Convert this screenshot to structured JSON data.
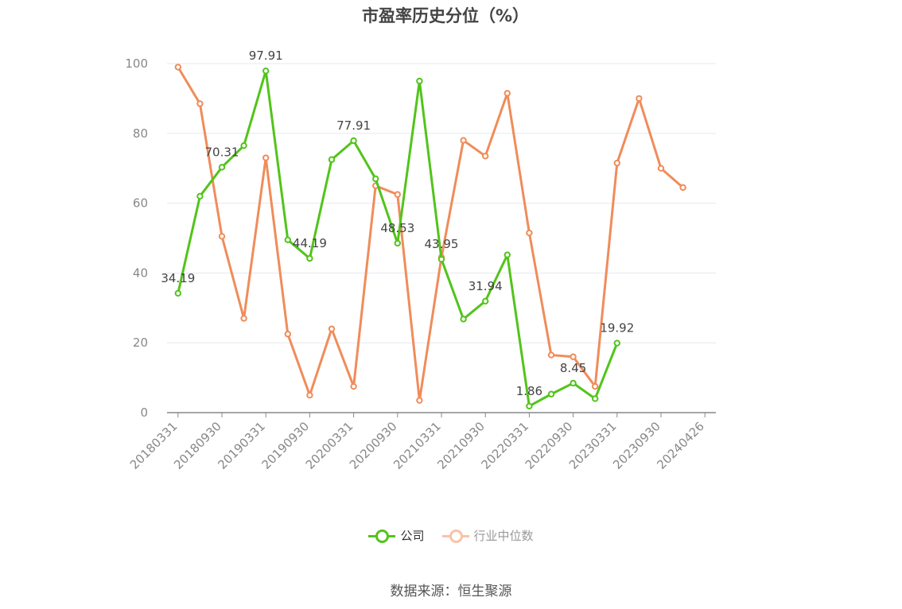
{
  "chart_data": {
    "type": "line",
    "title": "市盈率历史分位（%）",
    "ylim": [
      0,
      100
    ],
    "yticks": [
      0,
      20,
      40,
      60,
      80,
      100
    ],
    "grid": true,
    "legend_position": "bottom",
    "x_tick_labels": [
      "20180331",
      "20180930",
      "20190331",
      "20190930",
      "20200331",
      "20200930",
      "20210331",
      "20210930",
      "20220331",
      "20220930",
      "20230331",
      "20230930",
      "20240426"
    ],
    "x": [
      "20180331",
      "20180630",
      "20180930",
      "20181231",
      "20190331",
      "20190630",
      "20190930",
      "20191231",
      "20200331",
      "20200630",
      "20200930",
      "20201231",
      "20210331",
      "20210630",
      "20210930",
      "20211231",
      "20220331",
      "20220630",
      "20220930",
      "20221231",
      "20230331",
      "20230630",
      "20230930",
      "20231231",
      "20240426"
    ],
    "series": [
      {
        "name": "公司",
        "color": "#52c41a",
        "values": [
          34.19,
          62,
          70.31,
          76.5,
          97.91,
          49.5,
          44.19,
          72.5,
          77.91,
          67,
          48.53,
          95,
          43.95,
          26.8,
          31.94,
          45.2,
          1.86,
          5.3,
          8.45,
          4,
          19.92,
          null,
          null,
          null,
          null
        ],
        "labeled_values": [
          "34.19",
          null,
          "70.31",
          null,
          "97.91",
          null,
          "44.19",
          null,
          "77.91",
          null,
          "48.53",
          null,
          "43.95",
          null,
          "31.94",
          null,
          "1.86",
          null,
          "8.45",
          null,
          "19.92",
          null,
          null,
          null,
          null
        ]
      },
      {
        "name": "行业中位数",
        "color": "#f08c5a",
        "values": [
          99,
          88.5,
          50.5,
          27,
          73,
          22.5,
          5,
          24,
          7.5,
          65,
          62.5,
          3.5,
          44.5,
          78,
          73.5,
          91.5,
          51.5,
          16.5,
          16,
          7.5,
          71.5,
          90,
          70,
          64.5,
          null
        ]
      }
    ]
  },
  "legend": {
    "company_label": "公司",
    "industry_label": "行业中位数"
  },
  "source_text": "数据来源：恒生聚源"
}
